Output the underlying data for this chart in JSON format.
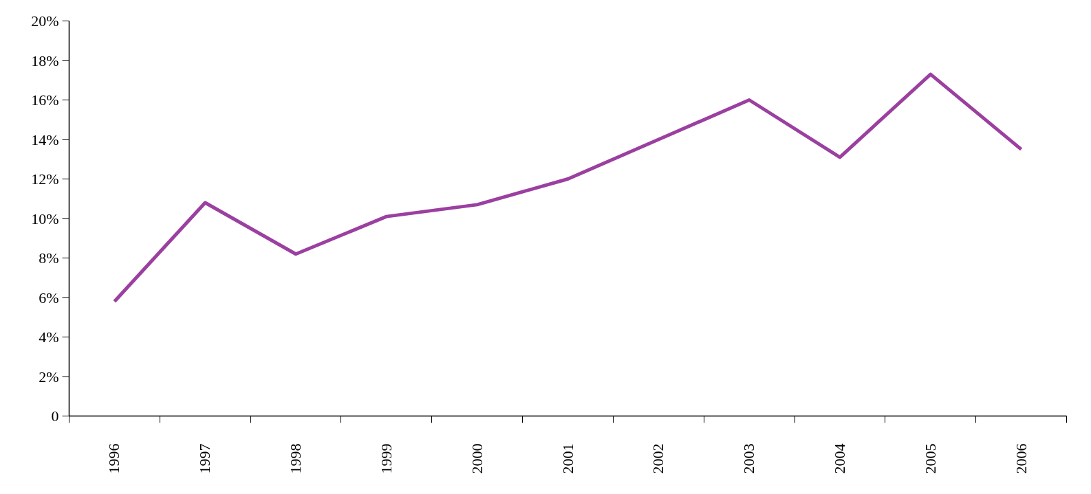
{
  "chart_data": {
    "type": "line",
    "categories": [
      "1996",
      "1997",
      "1998",
      "1999",
      "2000",
      "2001",
      "2002",
      "2003",
      "2004",
      "2005",
      "2006"
    ],
    "series": [
      {
        "color": "#9b3fa0",
        "values": [
          5.8,
          10.8,
          8.2,
          10.1,
          10.7,
          12.0,
          14.0,
          16.0,
          13.1,
          17.3,
          13.5
        ]
      }
    ],
    "ylim": [
      0,
      20
    ],
    "yticks": [
      0,
      {
        "value": 2,
        "label": "2%"
      },
      {
        "value": 4,
        "label": "4%"
      },
      {
        "value": 6,
        "label": "6%"
      },
      {
        "value": 8,
        "label": "8%"
      },
      {
        "value": 10,
        "label": "10%"
      },
      {
        "value": 12,
        "label": "12%"
      },
      {
        "value": 14,
        "label": "14%"
      },
      {
        "value": 16,
        "label": "16%"
      },
      {
        "value": 18,
        "label": "18%"
      },
      {
        "value": 20,
        "label": "20%"
      }
    ],
    "grid": false,
    "marker": "none",
    "line_style": "solid"
  }
}
